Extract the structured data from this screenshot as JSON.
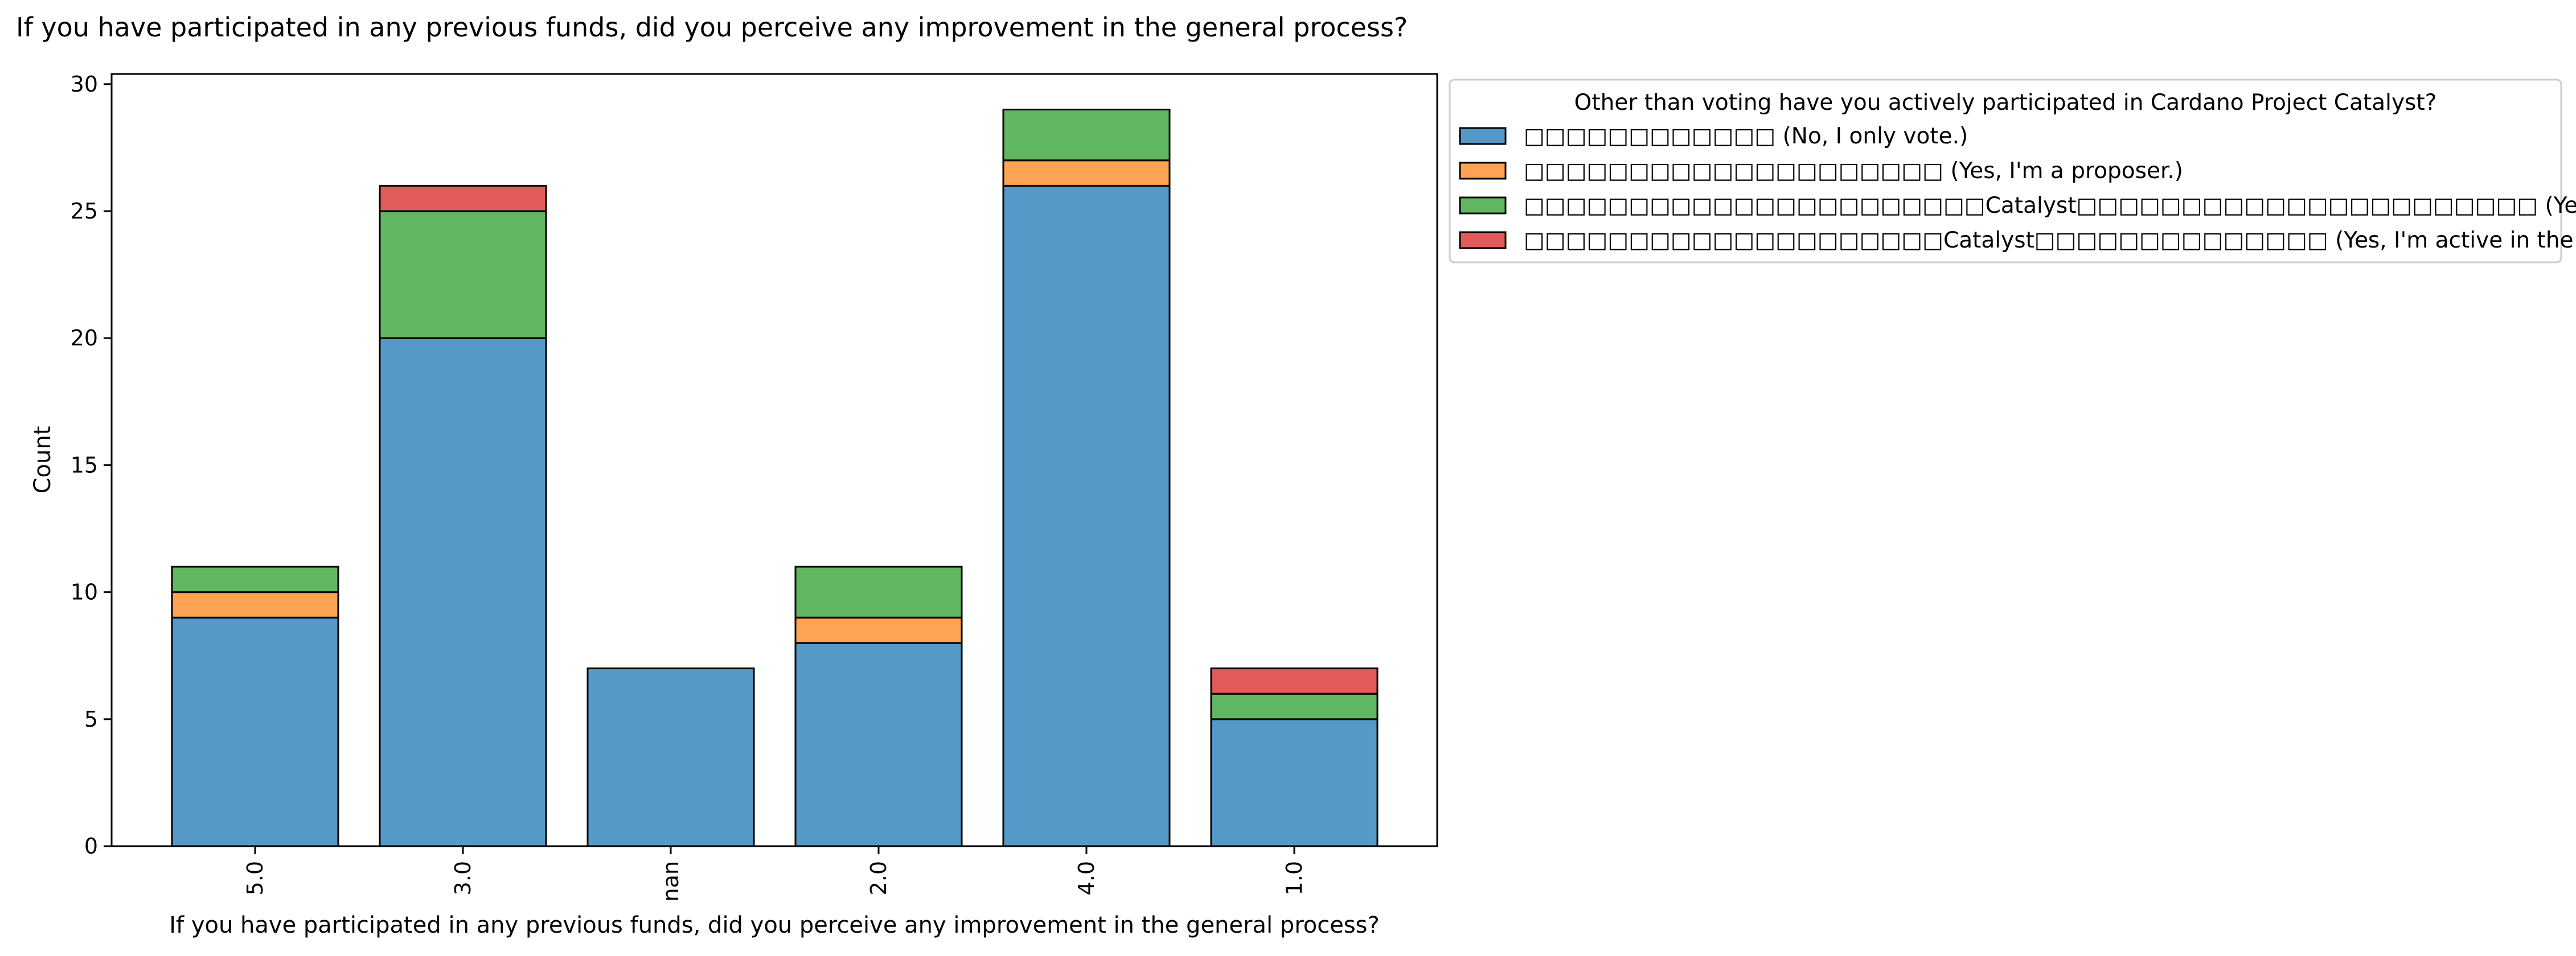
{
  "chart_data": {
    "type": "bar",
    "stacked": true,
    "title": "If you have participated in any previous funds, did you perceive any improvement in the general process?",
    "xlabel": "If you have participated in any previous funds, did you perceive any improvement in the general process?",
    "ylabel": "Count",
    "ylim": [
      0,
      30.4
    ],
    "yticks": [
      "0",
      "5",
      "10",
      "15",
      "20",
      "25",
      "30"
    ],
    "categories": [
      "5.0",
      "3.0",
      "nan",
      "2.0",
      "4.0",
      "1.0"
    ],
    "grid": false,
    "legend": {
      "title": "Other than voting have you actively participated in Cardano Project Catalyst?",
      "placement": "outside-right-top"
    },
    "series": [
      {
        "name": "□□□□□□□□□□□□ (No, I only vote.)",
        "color": "#5599c8",
        "values": [
          9,
          20,
          7,
          8,
          26,
          5
        ]
      },
      {
        "name": "□□□□□□□□□□□□□□□□□□□□ (Yes, I'm a proposer.)",
        "color": "#fda353",
        "values": [
          1,
          0,
          0,
          1,
          1,
          0
        ]
      },
      {
        "name": "□□□□□□□□□□□□□□□□□□□□□□Catalyst□□□□□□□□□□□□□□□□□□□□□□ (Yes, I'm a lurker in the community)",
        "color": "#61b761",
        "values": [
          1,
          5,
          0,
          2,
          2,
          1
        ]
      },
      {
        "name": "□□□□□□□□□□□□□□□□□□□□Catalyst□□□□□□□□□□□□□□ (Yes, I'm active in the community.)",
        "color": "#e15b5b",
        "values": [
          0,
          1,
          0,
          0,
          0,
          1
        ]
      }
    ]
  }
}
